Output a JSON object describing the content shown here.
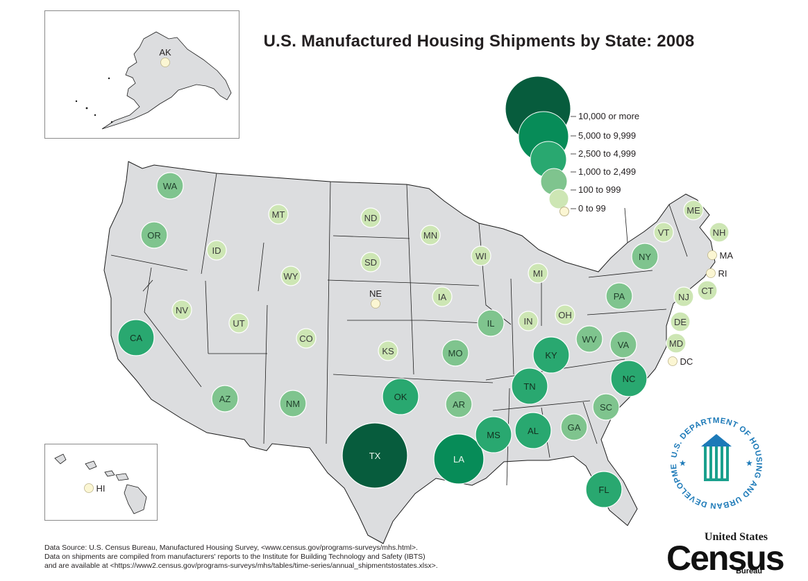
{
  "title": "U.S. Manufactured Housing Shipments by State: 2008",
  "colors": {
    "state_fill": "#dcdddf",
    "state_stroke": "#1a1a1a",
    "c0": "#fbf6d3",
    "c1": "#cde6b4",
    "c2": "#7fc48e",
    "c3": "#29a870",
    "c4": "#078c58",
    "c5": "#075c3d",
    "hud_blue": "#1d7ab8",
    "hud_green": "#1aa08d"
  },
  "legend": [
    {
      "label": "10,000 or more",
      "cls": "c5"
    },
    {
      "label": "5,000 to 9,999",
      "cls": "c4"
    },
    {
      "label": "2,500 to 4,999",
      "cls": "c3"
    },
    {
      "label": "1,000 to 2,499",
      "cls": "c2"
    },
    {
      "label": "100 to 999",
      "cls": "c1"
    },
    {
      "label": "0 to 99",
      "cls": "c0"
    }
  ],
  "states": [
    {
      "abbr": "WA",
      "cls": "c2"
    },
    {
      "abbr": "OR",
      "cls": "c2"
    },
    {
      "abbr": "CA",
      "cls": "c3"
    },
    {
      "abbr": "ID",
      "cls": "c1"
    },
    {
      "abbr": "NV",
      "cls": "c1"
    },
    {
      "abbr": "MT",
      "cls": "c1"
    },
    {
      "abbr": "WY",
      "cls": "c1"
    },
    {
      "abbr": "UT",
      "cls": "c1"
    },
    {
      "abbr": "CO",
      "cls": "c1"
    },
    {
      "abbr": "AZ",
      "cls": "c2"
    },
    {
      "abbr": "NM",
      "cls": "c2"
    },
    {
      "abbr": "ND",
      "cls": "c1"
    },
    {
      "abbr": "SD",
      "cls": "c1"
    },
    {
      "abbr": "NE",
      "cls": "c0"
    },
    {
      "abbr": "KS",
      "cls": "c1"
    },
    {
      "abbr": "OK",
      "cls": "c3"
    },
    {
      "abbr": "TX",
      "cls": "c5"
    },
    {
      "abbr": "MN",
      "cls": "c1"
    },
    {
      "abbr": "IA",
      "cls": "c1"
    },
    {
      "abbr": "MO",
      "cls": "c2"
    },
    {
      "abbr": "AR",
      "cls": "c2"
    },
    {
      "abbr": "LA",
      "cls": "c4"
    },
    {
      "abbr": "WI",
      "cls": "c1"
    },
    {
      "abbr": "IL",
      "cls": "c2"
    },
    {
      "abbr": "MI",
      "cls": "c1"
    },
    {
      "abbr": "IN",
      "cls": "c1"
    },
    {
      "abbr": "OH",
      "cls": "c1"
    },
    {
      "abbr": "KY",
      "cls": "c3"
    },
    {
      "abbr": "TN",
      "cls": "c3"
    },
    {
      "abbr": "MS",
      "cls": "c3"
    },
    {
      "abbr": "AL",
      "cls": "c3"
    },
    {
      "abbr": "GA",
      "cls": "c2"
    },
    {
      "abbr": "FL",
      "cls": "c3"
    },
    {
      "abbr": "SC",
      "cls": "c2"
    },
    {
      "abbr": "NC",
      "cls": "c3"
    },
    {
      "abbr": "VA",
      "cls": "c2"
    },
    {
      "abbr": "WV",
      "cls": "c2"
    },
    {
      "abbr": "PA",
      "cls": "c2"
    },
    {
      "abbr": "NY",
      "cls": "c2"
    },
    {
      "abbr": "VT",
      "cls": "c1"
    },
    {
      "abbr": "ME",
      "cls": "c1"
    },
    {
      "abbr": "NH",
      "cls": "c1"
    },
    {
      "abbr": "MA",
      "cls": "c0"
    },
    {
      "abbr": "RI",
      "cls": "c0"
    },
    {
      "abbr": "CT",
      "cls": "c1"
    },
    {
      "abbr": "NJ",
      "cls": "c1"
    },
    {
      "abbr": "DE",
      "cls": "c1"
    },
    {
      "abbr": "MD",
      "cls": "c1"
    },
    {
      "abbr": "DC",
      "cls": "c0"
    },
    {
      "abbr": "AK",
      "cls": "c0"
    },
    {
      "abbr": "HI",
      "cls": "c0"
    }
  ],
  "source": {
    "line1": "Data Source: U.S. Census Bureau, Manufactured Housing Survey, <www.census.gov/programs-surveys/mhs.html>.",
    "line2": "Data on shipments are compiled from manufacturers' reports to the Institute for Building Technology and Safety (IBTS)",
    "line3": "and are available at <https://www2.census.gov/programs-surveys/mhs/tables/time-series/annual_shipmentstostates.xlsx>."
  },
  "hud_seal": {
    "text": "U.S. DEPARTMENT OF HOUSING AND URBAN DEVELOPMENT"
  },
  "census_logo": {
    "line1": "United States",
    "word": "Census",
    "line3": "Bureau"
  }
}
